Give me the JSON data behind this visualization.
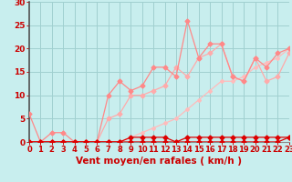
{
  "xlabel": "Vent moyen/en rafales ( km/h )",
  "xlim": [
    0,
    23
  ],
  "ylim": [
    0,
    30
  ],
  "yticks": [
    0,
    5,
    10,
    15,
    20,
    25,
    30
  ],
  "xticks": [
    0,
    1,
    2,
    3,
    4,
    5,
    6,
    7,
    8,
    9,
    10,
    11,
    12,
    13,
    14,
    15,
    16,
    17,
    18,
    19,
    20,
    21,
    22,
    23
  ],
  "bg_color": "#c8eeee",
  "grid_color": "#a0d0d0",
  "series": [
    {
      "x": [
        0,
        1,
        2,
        3,
        4,
        5,
        6,
        7,
        8,
        9,
        10,
        11,
        12,
        13,
        14,
        15,
        16,
        17,
        18,
        19,
        20,
        21,
        22,
        23
      ],
      "y": [
        0,
        0,
        0,
        0,
        0,
        0,
        0,
        0,
        0,
        1,
        1,
        1,
        1,
        0,
        1,
        1,
        1,
        1,
        1,
        1,
        1,
        1,
        1,
        1
      ],
      "color": "#dd0000",
      "lw": 0.9,
      "ms": 2.5,
      "marker": "D",
      "zorder": 5
    },
    {
      "x": [
        0,
        1,
        2,
        3,
        4,
        5,
        6,
        7,
        8,
        9,
        10,
        11,
        12,
        13,
        14,
        15,
        16,
        17,
        18,
        19,
        20,
        21,
        22,
        23
      ],
      "y": [
        0,
        0,
        0,
        0,
        0,
        0,
        0,
        0,
        0,
        0,
        0,
        0,
        0,
        0,
        0,
        0,
        0,
        0,
        0,
        0,
        0,
        0,
        0,
        1
      ],
      "color": "#dd0000",
      "lw": 0.9,
      "ms": 2.5,
      "marker": "D",
      "zorder": 5
    },
    {
      "x": [
        0,
        1,
        2,
        3,
        4,
        5,
        6,
        7,
        8,
        9,
        10,
        11,
        12,
        13,
        14,
        15,
        16,
        17,
        18,
        19,
        20,
        21,
        22,
        23
      ],
      "y": [
        6,
        0,
        2,
        2,
        0,
        0,
        0,
        10,
        13,
        11,
        12,
        16,
        16,
        14,
        26,
        18,
        21,
        21,
        14,
        13,
        18,
        16,
        19,
        20
      ],
      "color": "#ff8888",
      "lw": 0.9,
      "ms": 2.5,
      "marker": "D",
      "zorder": 4
    },
    {
      "x": [
        0,
        1,
        2,
        3,
        4,
        5,
        6,
        7,
        8,
        9,
        10,
        11,
        12,
        13,
        14,
        15,
        16,
        17,
        18,
        19,
        20,
        21,
        22,
        23
      ],
      "y": [
        0,
        0,
        0,
        0,
        0,
        0,
        0,
        5,
        6,
        10,
        10,
        11,
        12,
        16,
        14,
        18,
        19,
        21,
        14,
        13,
        18,
        13,
        14,
        19
      ],
      "color": "#ffaaaa",
      "lw": 0.9,
      "ms": 2.5,
      "marker": "D",
      "zorder": 3
    },
    {
      "x": [
        0,
        1,
        2,
        3,
        4,
        5,
        6,
        7,
        8,
        9,
        10,
        11,
        12,
        13,
        14,
        15,
        16,
        17,
        18,
        19,
        20,
        21,
        22,
        23
      ],
      "y": [
        0,
        0,
        0,
        0,
        0,
        0,
        0,
        0,
        0,
        1,
        2,
        3,
        4,
        5,
        7,
        9,
        11,
        13,
        13,
        14,
        16,
        17,
        18,
        20
      ],
      "color": "#ffbbbb",
      "lw": 0.9,
      "ms": 2.0,
      "marker": "D",
      "zorder": 2
    }
  ],
  "xlabel_color": "#cc0000",
  "xlabel_fontsize": 7.5,
  "tick_color": "#cc0000",
  "tick_fontsize": 6,
  "ytick_fontsize": 6.5
}
